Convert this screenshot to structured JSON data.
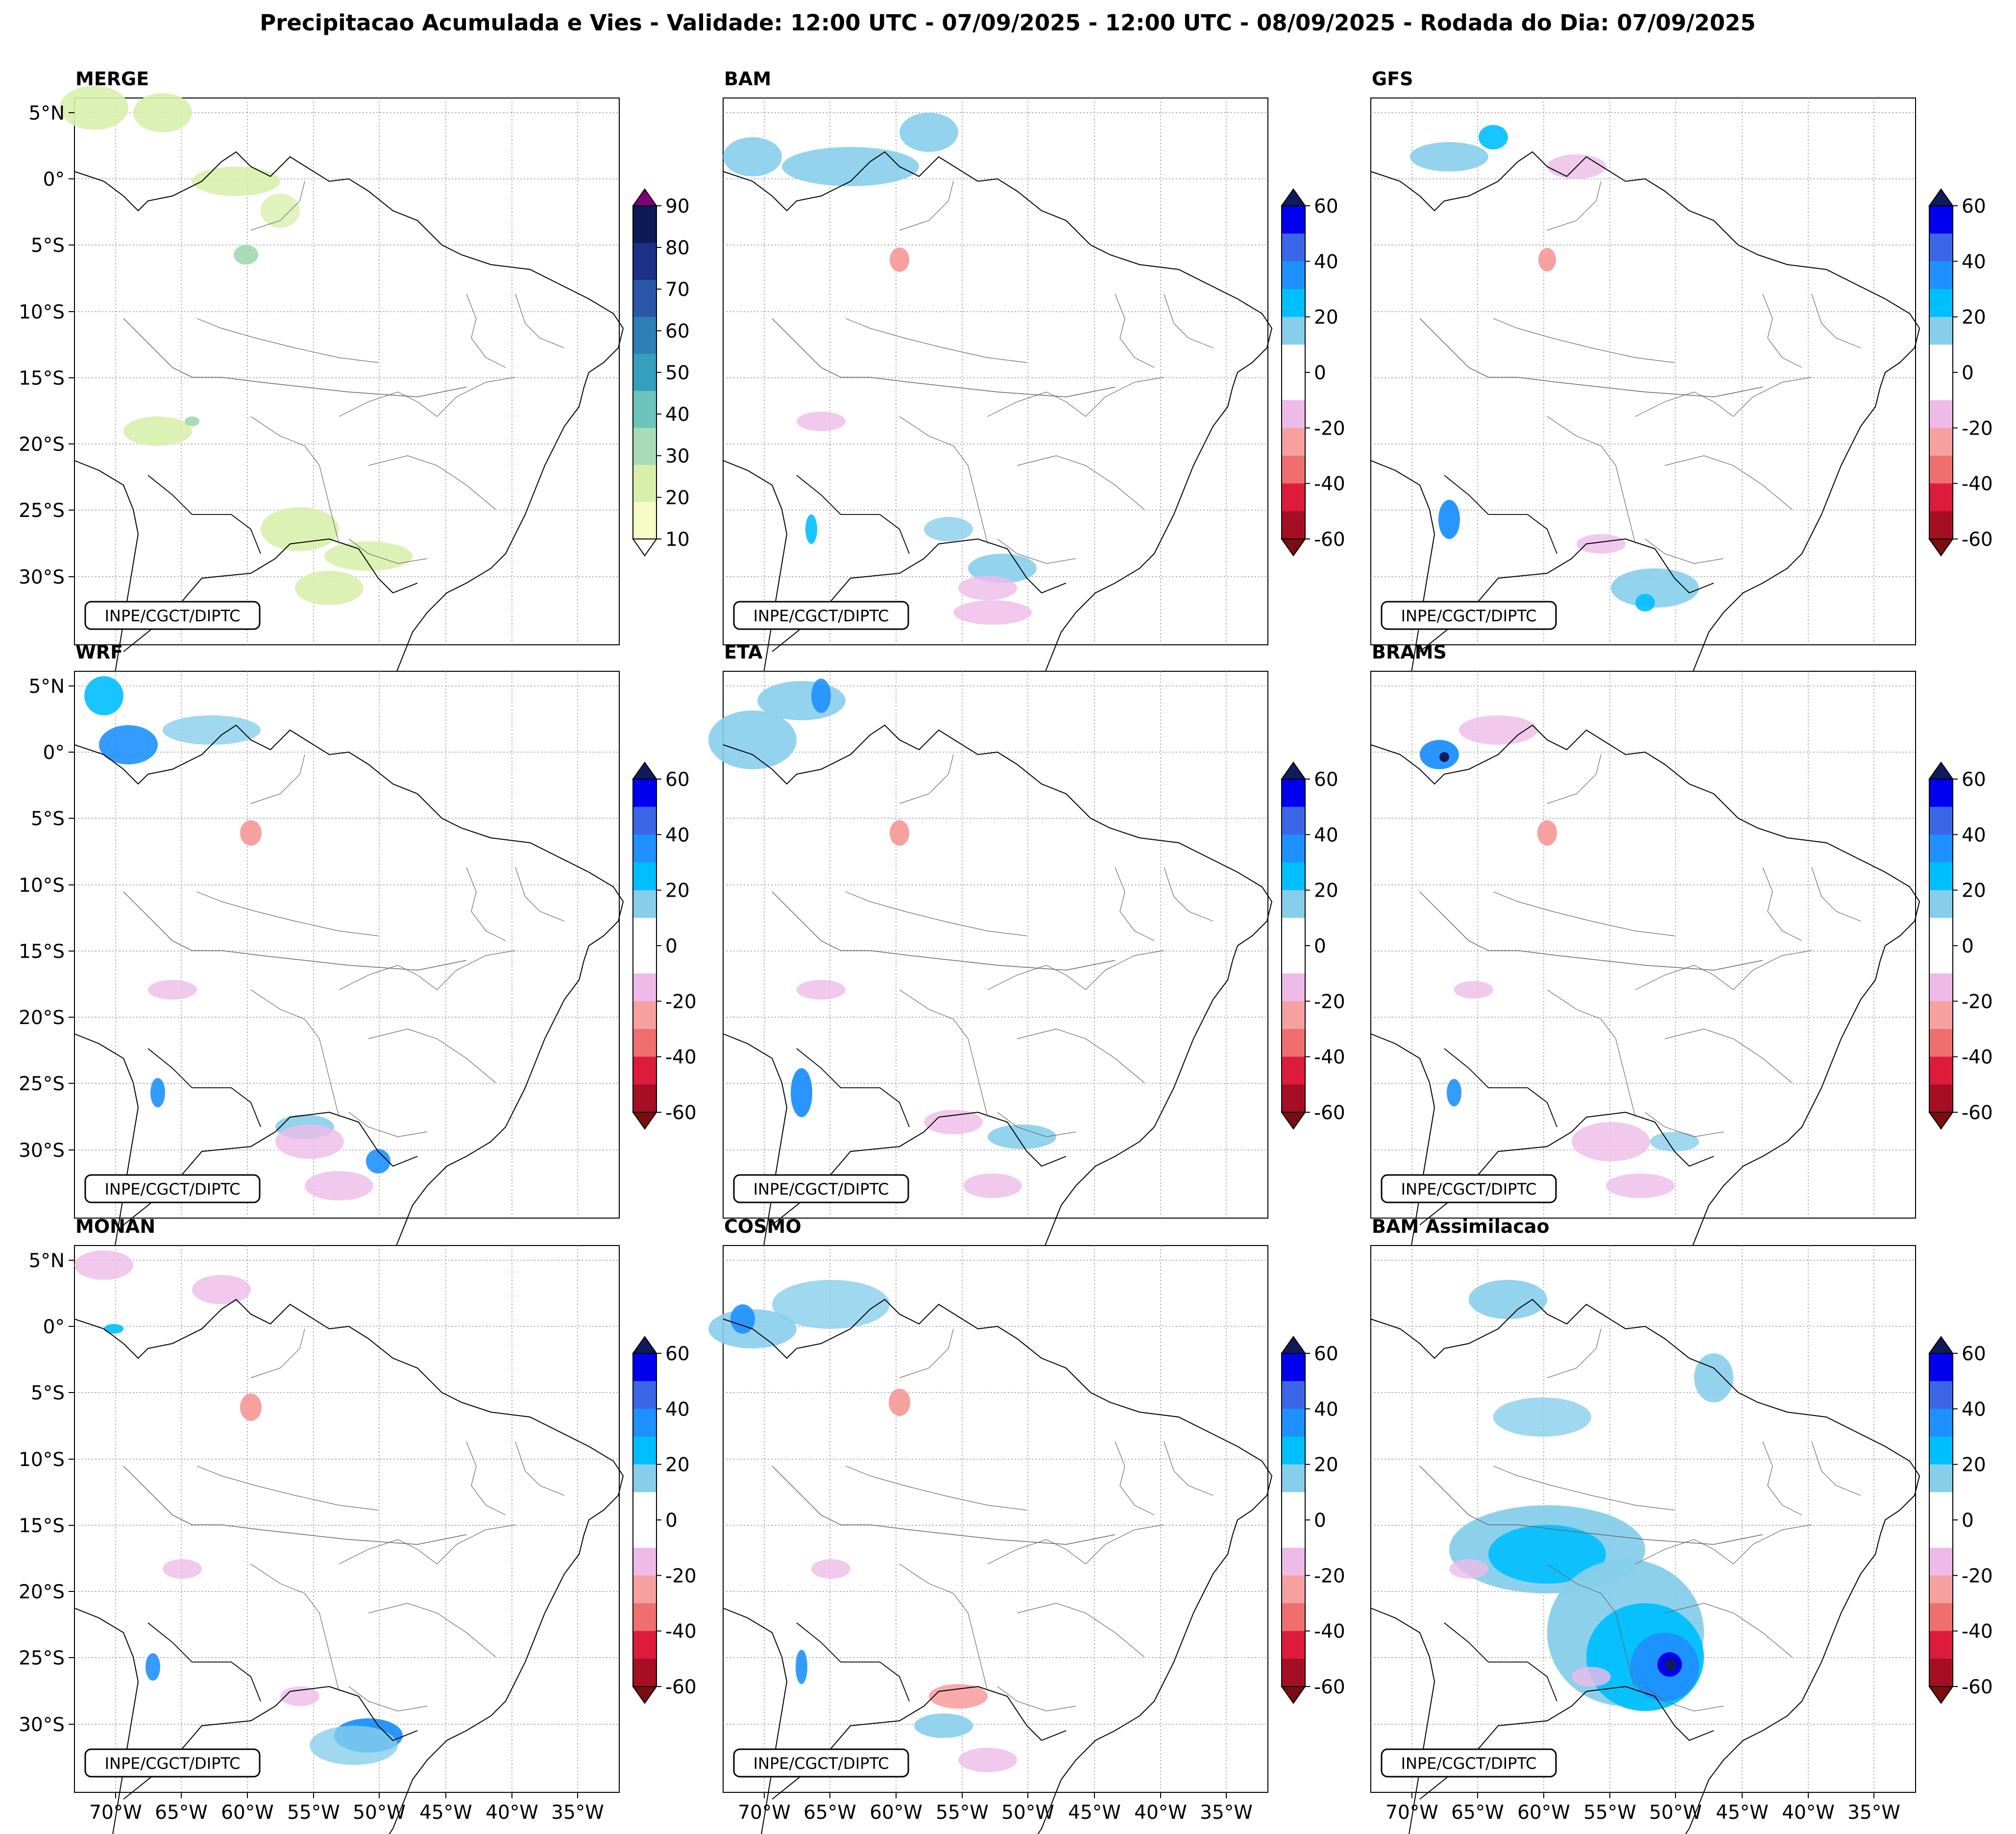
{
  "figure": {
    "title": "Precipitacao Acumulada e Vies - Validade: 12:00 UTC - 07/09/2025 - 12:00 UTC - 08/09/2025 - Rodada do Dia: 07/09/2025",
    "credit": "INPE/CGCT/DIPTC",
    "lat_ticks": [
      "5°N",
      "0°",
      "5°S",
      "10°S",
      "15°S",
      "20°S",
      "25°S",
      "30°S"
    ],
    "lon_ticks": [
      "70°W",
      "65°W",
      "60°W",
      "55°W",
      "50°W",
      "45°W",
      "40°W",
      "35°W"
    ]
  },
  "panels": [
    {
      "name": "MERGE",
      "colorbar": "precip"
    },
    {
      "name": "BAM",
      "colorbar": "bias"
    },
    {
      "name": "GFS",
      "colorbar": "bias"
    },
    {
      "name": "WRF",
      "colorbar": "bias"
    },
    {
      "name": "ETA",
      "colorbar": "bias"
    },
    {
      "name": "BRAMS",
      "colorbar": "bias"
    },
    {
      "name": "MONAN",
      "colorbar": "bias"
    },
    {
      "name": "COSMO",
      "colorbar": "bias"
    },
    {
      "name": "BAM Assimilacao",
      "colorbar": "bias"
    }
  ],
  "colorbars": {
    "precip": {
      "labels": [
        "90",
        "80",
        "70",
        "60",
        "50",
        "40",
        "30",
        "20",
        "10"
      ],
      "colors": [
        "#0c1a55",
        "#1d2f86",
        "#2a56a8",
        "#2e7fb8",
        "#35a0bd",
        "#6cc4bb",
        "#a8dcb6",
        "#d8efac",
        "#f6fbc6"
      ],
      "over_color": "#7a0177",
      "under_color": "#ffffff"
    },
    "bias": {
      "labels": [
        "60",
        "40",
        "20",
        "0",
        "-20",
        "-40",
        "-60"
      ],
      "colors": [
        "#0000ee",
        "#3b66e8",
        "#1e90ff",
        "#00bfff",
        "#87ceeb",
        "#ffffff",
        "#ffffff",
        "#eebbe8",
        "#f7a0a0",
        "#ef6f6f",
        "#dd1c3c",
        "#a50f23"
      ],
      "over_color": "#101b5c",
      "under_color": "#7b0c12"
    }
  }
}
